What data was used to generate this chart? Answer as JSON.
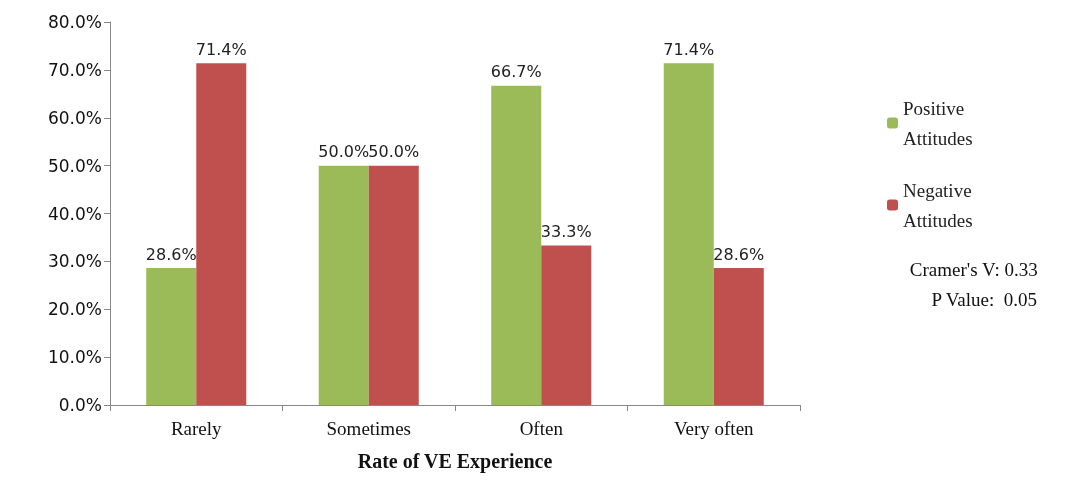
{
  "chart_data": {
    "type": "bar",
    "xlabel": "Rate of VE Experience",
    "categories": [
      "Rarely",
      "Sometimes",
      "Often",
      "Very often"
    ],
    "series": [
      {
        "name": "Positive Attitudes",
        "color": "#9bbb59",
        "values": [
          28.6,
          50.0,
          66.7,
          71.4
        ],
        "value_labels": [
          "28.6%",
          "50.0%",
          "66.7%",
          "71.4%"
        ]
      },
      {
        "name": "Negative Attitudes",
        "color": "#c0504d",
        "values": [
          71.4,
          50.0,
          33.3,
          28.6
        ],
        "value_labels": [
          "71.4%",
          "50.0%",
          "33.3%",
          "28.6%"
        ]
      }
    ],
    "ylim": [
      0,
      80
    ],
    "yticks": [
      {
        "value": 0,
        "label": "0.0%"
      },
      {
        "value": 10,
        "label": "10.0%"
      },
      {
        "value": 20,
        "label": "20.0%"
      },
      {
        "value": 30,
        "label": "30.0%"
      },
      {
        "value": 40,
        "label": "40.0%"
      },
      {
        "value": 50,
        "label": "50.0%"
      },
      {
        "value": 60,
        "label": "60.0%"
      },
      {
        "value": 70,
        "label": "70.0%"
      },
      {
        "value": 80,
        "label": "80.0%"
      }
    ],
    "grid": false,
    "legend": "right",
    "annotations": [
      "Cramer's V: 0.33",
      "P Value:  0.05"
    ]
  }
}
